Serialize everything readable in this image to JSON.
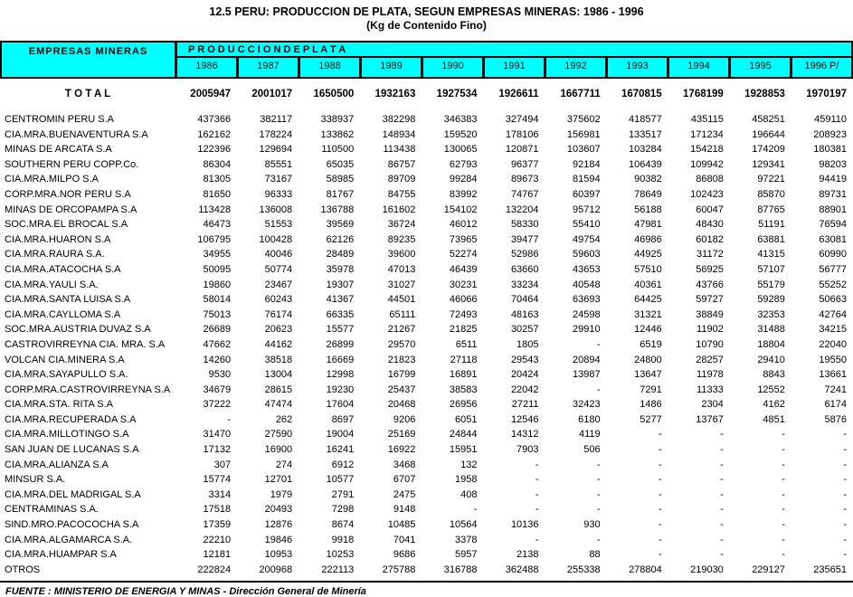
{
  "title": "12.5 PERU: PRODUCCION DE PLATA, SEGUN EMPRESAS MINERAS: 1986 - 1996",
  "subtitle": "(Kg de Contenido Fino)",
  "header": {
    "col1": "EMPRESAS MINERAS",
    "group": "P R O D U C C I O N   D E   P L A T A",
    "years": [
      "1986",
      "1987",
      "1988",
      "1989",
      "1990",
      "1991",
      "1992",
      "1993",
      "1994",
      "1995",
      "1996  P/"
    ]
  },
  "total": {
    "label": "T O T A L",
    "values": [
      "2005947",
      "2001017",
      "1650500",
      "1932163",
      "1927534",
      "1926611",
      "1667711",
      "1670815",
      "1768199",
      "1928853",
      "1970197"
    ]
  },
  "rows": [
    {
      "name": "CENTROMIN PERU S.A",
      "values": [
        "437366",
        "382117",
        "338937",
        "382298",
        "346383",
        "327494",
        "375602",
        "418577",
        "435115",
        "458251",
        "459110"
      ]
    },
    {
      "name": "CIA.MRA.BUENAVENTURA  S.A",
      "values": [
        "162162",
        "178224",
        "133862",
        "148934",
        "159520",
        "178106",
        "156981",
        "133517",
        "171234",
        "196644",
        "208923"
      ]
    },
    {
      "name": "MINAS DE ARCATA  S.A",
      "values": [
        "122396",
        "129694",
        "110500",
        "113438",
        "130065",
        "120871",
        "103607",
        "103284",
        "154218",
        "174209",
        "180381"
      ]
    },
    {
      "name": "SOUTHERN PERU COPP.Co.",
      "values": [
        "86304",
        "85551",
        "65035",
        "86757",
        "62793",
        "96377",
        "92184",
        "106439",
        "109942",
        "129341",
        "98203"
      ]
    },
    {
      "name": "CIA.MRA.MILPO  S.A",
      "values": [
        "81305",
        "73167",
        "58985",
        "89709",
        "99284",
        "89673",
        "81594",
        "90382",
        "86808",
        "97221",
        "94419"
      ]
    },
    {
      "name": "CORP.MRA.NOR PERU  S.A",
      "values": [
        "81650",
        "96333",
        "81767",
        "84755",
        "83992",
        "74767",
        "60397",
        "78649",
        "102423",
        "85870",
        "89731"
      ]
    },
    {
      "name": "MINAS DE ORCOPAMPA S.A",
      "values": [
        "113428",
        "136008",
        "136788",
        "161602",
        "154102",
        "132204",
        "95712",
        "56188",
        "60047",
        "87765",
        "88901"
      ]
    },
    {
      "name": "SOC.MRA.EL BROCAL  S.A",
      "values": [
        "46473",
        "51553",
        "39569",
        "36724",
        "46012",
        "58330",
        "55410",
        "47981",
        "48430",
        "51191",
        "76594"
      ]
    },
    {
      "name": "CIA.MRA.HUARON  S.A",
      "values": [
        "106795",
        "100428",
        "62126",
        "89235",
        "73965",
        "39477",
        "49754",
        "46986",
        "60182",
        "63881",
        "63081"
      ]
    },
    {
      "name": "CIA.MRA.RAURA S.A.",
      "values": [
        "34955",
        "40046",
        "28489",
        "39600",
        "52274",
        "52986",
        "59603",
        "44925",
        "31172",
        "41315",
        "60990"
      ]
    },
    {
      "name": "CIA.MRA.ATACOCHA  S.A",
      "values": [
        "50095",
        "50774",
        "35978",
        "47013",
        "46439",
        "63660",
        "43653",
        "57510",
        "56925",
        "57107",
        "56777"
      ]
    },
    {
      "name": "CIA.MRA.YAULI S.A.",
      "values": [
        "19860",
        "23467",
        "19307",
        "31027",
        "30231",
        "33234",
        "40548",
        "40361",
        "43766",
        "55179",
        "55252"
      ]
    },
    {
      "name": "CIA.MRA.SANTA LUISA  S.A",
      "values": [
        "58014",
        "60243",
        "41367",
        "44501",
        "46066",
        "70464",
        "63693",
        "64425",
        "59727",
        "59289",
        "50663"
      ]
    },
    {
      "name": "CIA.MRA.CAYLLOMA S.A",
      "values": [
        "75013",
        "76174",
        "66335",
        "65111",
        "72493",
        "48163",
        "24598",
        "31321",
        "38849",
        "32353",
        "42764"
      ]
    },
    {
      "name": "SOC.MRA.AUSTRIA DUVAZ  S.A",
      "values": [
        "26689",
        "20623",
        "15577",
        "21267",
        "21825",
        "30257",
        "29910",
        "12446",
        "11902",
        "31488",
        "34215"
      ]
    },
    {
      "name": "CASTROVIRREYNA  CIA. MRA. S.A",
      "values": [
        "47662",
        "44162",
        "26899",
        "29570",
        "6511",
        "1805",
        "-",
        "6519",
        "10790",
        "18804",
        "22040"
      ]
    },
    {
      "name": "VOLCAN CIA.MINERA  S.A",
      "values": [
        "14260",
        "38518",
        "16669",
        "21823",
        "27118",
        "29543",
        "20894",
        "24800",
        "28257",
        "29410",
        "19550"
      ]
    },
    {
      "name": "CIA.MRA.SAYAPULLO S.A.",
      "values": [
        "9530",
        "13004",
        "12998",
        "16799",
        "16891",
        "20424",
        "13987",
        "13647",
        "11978",
        "8843",
        "13661"
      ]
    },
    {
      "name": "CORP.MRA.CASTROVIRREYNA  S.A",
      "values": [
        "34679",
        "28615",
        "19230",
        "25437",
        "38583",
        "22042",
        "-",
        "7291",
        "11333",
        "12552",
        "7241"
      ]
    },
    {
      "name": "CIA.MRA.STA. RITA  S.A",
      "values": [
        "37222",
        "47474",
        "17604",
        "20468",
        "26956",
        "27211",
        "32423",
        "1486",
        "2304",
        "4162",
        "6174"
      ]
    },
    {
      "name": "CIA.MRA.RECUPERADA  S.A",
      "values": [
        "-",
        "262",
        "8697",
        "9206",
        "6051",
        "12546",
        "6180",
        "5277",
        "13767",
        "4851",
        "5876"
      ]
    },
    {
      "name": "CIA.MRA.MILLOTINGO  S.A",
      "values": [
        "31470",
        "27590",
        "19004",
        "25169",
        "24844",
        "14312",
        "4119",
        "-",
        "-",
        "-",
        "-"
      ]
    },
    {
      "name": "SAN JUAN DE LUCANAS S.A",
      "values": [
        "17132",
        "16900",
        "16241",
        "16922",
        "15951",
        "7903",
        "506",
        "-",
        "-",
        "-",
        "-"
      ]
    },
    {
      "name": "CIA.MRA.ALIANZA  S.A",
      "values": [
        "307",
        "274",
        "6912",
        "3468",
        "132",
        "-",
        "-",
        "-",
        "-",
        "-",
        "-"
      ]
    },
    {
      "name": "MINSUR S.A.",
      "values": [
        "15774",
        "12701",
        "10577",
        "6707",
        "1958",
        "-",
        "-",
        "-",
        "-",
        "-",
        "-"
      ]
    },
    {
      "name": "CIA.MRA.DEL MADRIGAL  S.A",
      "values": [
        "3314",
        "1979",
        "2791",
        "2475",
        "408",
        "-",
        "-",
        "-",
        "-",
        "-",
        "-"
      ]
    },
    {
      "name": "CENTRAMINAS S.A.",
      "values": [
        "17518",
        "20493",
        "7298",
        "9148",
        "-",
        "-",
        "-",
        "-",
        "-",
        "-",
        "-"
      ]
    },
    {
      "name": "SIND.MRO.PACOCOCHA  S.A",
      "values": [
        "17359",
        "12876",
        "8674",
        "10485",
        "10564",
        "10136",
        "930",
        "-",
        "-",
        "-",
        "-"
      ]
    },
    {
      "name": "CIA.MRA.ALGAMARCA S.A.",
      "values": [
        "22210",
        "19846",
        "9918",
        "7041",
        "3378",
        "-",
        "-",
        "-",
        "-",
        "-",
        "-"
      ]
    },
    {
      "name": "CIA.MRA.HUAMPAR  S.A",
      "values": [
        "12181",
        "10953",
        "10253",
        "9686",
        "5957",
        "2138",
        "88",
        "-",
        "-",
        "-",
        "-"
      ]
    },
    {
      "name": "OTROS",
      "values": [
        "222824",
        "200968",
        "222113",
        "275788",
        "316788",
        "362488",
        "255338",
        "278804",
        "219030",
        "229127",
        "235651"
      ]
    }
  ],
  "footer": "FUENTE : MINISTERIO DE ENERGIA Y MINAS  - Dirección General de Minería",
  "colors": {
    "header_bg": "#00ffff",
    "border": "#000000",
    "text": "#000000",
    "page_bg": "#ffffff"
  }
}
